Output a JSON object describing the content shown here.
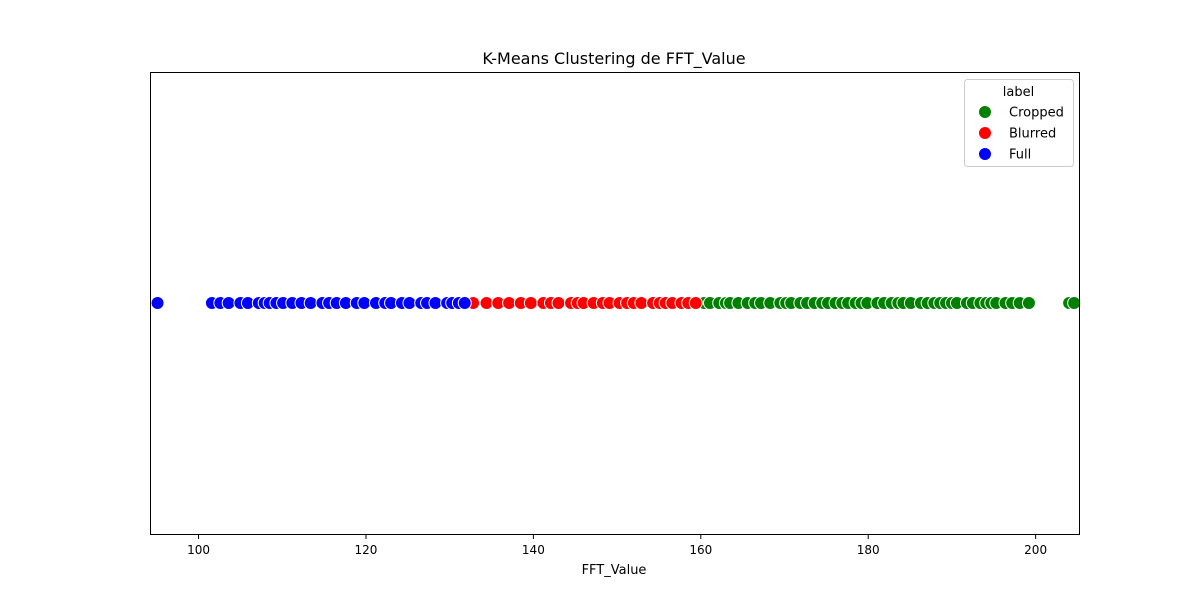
{
  "chart_data": {
    "type": "scatter",
    "title": "K-Means Clustering de FFT_Value",
    "xlabel": "FFT_Value",
    "ylabel": "",
    "xlim": [
      94.2,
      205.3
    ],
    "xticks": [
      100,
      120,
      140,
      160,
      180,
      200
    ],
    "xtick_labels": [
      "100",
      "120",
      "140",
      "160",
      "180",
      "200"
    ],
    "grid": false,
    "legend": {
      "title": "label",
      "placement": "top-right"
    },
    "series": [
      {
        "name": "Cropped",
        "color": "#008000",
        "x": [
          160.4,
          161.1,
          162.2,
          163.0,
          163.5,
          164.5,
          165.6,
          166.5,
          167.2,
          168.3,
          169.5,
          170.2,
          170.8,
          171.9,
          172.7,
          173.6,
          174.5,
          175.2,
          176.1,
          176.9,
          177.6,
          178.5,
          179.2,
          179.9,
          181.1,
          181.9,
          182.8,
          183.6,
          184.2,
          185.1,
          186.3,
          187.1,
          187.9,
          188.6,
          189.3,
          190.0,
          190.6,
          191.8,
          192.5,
          193.4,
          194.1,
          194.7,
          195.3,
          196.4,
          197.2,
          198.1,
          199.2,
          204.0,
          204.6
        ],
        "y": [
          0,
          0,
          0,
          0,
          0,
          0,
          0,
          0,
          0,
          0,
          0,
          0,
          0,
          0,
          0,
          0,
          0,
          0,
          0,
          0,
          0,
          0,
          0,
          0,
          0,
          0,
          0,
          0,
          0,
          0,
          0,
          0,
          0,
          0,
          0,
          0,
          0,
          0,
          0,
          0,
          0,
          0,
          0,
          0,
          0,
          0,
          0,
          0,
          0
        ]
      },
      {
        "name": "Blurred",
        "color": "#ff0000",
        "x": [
          132.8,
          134.4,
          135.8,
          137.1,
          138.5,
          139.7,
          141.2,
          142.1,
          143.0,
          144.5,
          145.3,
          146.0,
          147.2,
          148.3,
          149.1,
          150.3,
          151.2,
          152.0,
          152.9,
          154.3,
          155.1,
          155.8,
          156.6,
          157.7,
          158.5,
          159.4
        ],
        "y": [
          0,
          0,
          0,
          0,
          0,
          0,
          0,
          0,
          0,
          0,
          0,
          0,
          0,
          0,
          0,
          0,
          0,
          0,
          0,
          0,
          0,
          0,
          0,
          0,
          0,
          0
        ]
      },
      {
        "name": "Full",
        "color": "#0000ff",
        "x": [
          95.1,
          101.6,
          102.6,
          103.6,
          105.0,
          105.9,
          107.2,
          107.9,
          108.5,
          109.3,
          110.1,
          111.2,
          112.3,
          113.4,
          114.8,
          115.6,
          116.5,
          117.6,
          118.9,
          119.8,
          121.2,
          122.3,
          123.0,
          124.3,
          125.2,
          126.6,
          127.3,
          128.3,
          129.7,
          130.3,
          131.1,
          131.8
        ],
        "y": [
          0,
          0,
          0,
          0,
          0,
          0,
          0,
          0,
          0,
          0,
          0,
          0,
          0,
          0,
          0,
          0,
          0,
          0,
          0,
          0,
          0,
          0,
          0,
          0,
          0,
          0,
          0,
          0,
          0,
          0,
          0,
          0
        ]
      }
    ]
  }
}
